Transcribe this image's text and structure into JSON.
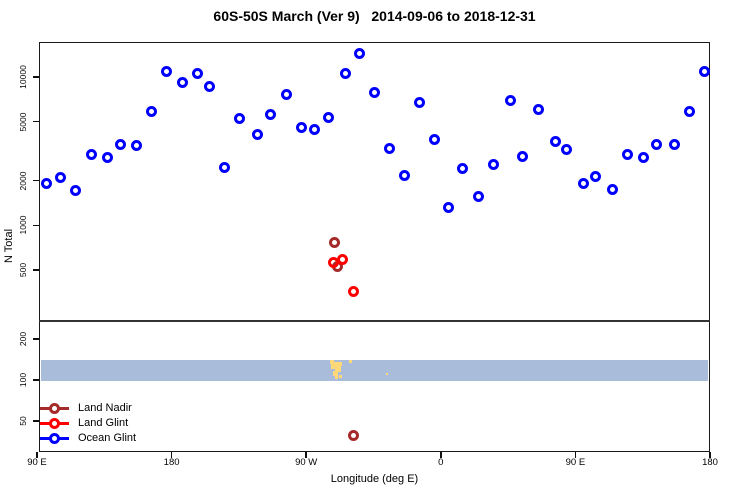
{
  "title": "60S-50S March (Ver 9)   2014-09-06 to 2018-12-31",
  "axes": {
    "y_label": "N Total",
    "x_label": "Longitude (deg E)",
    "x_ticks": [
      {
        "deg": 90,
        "label": "90 E"
      },
      {
        "deg": 180,
        "label": "180"
      },
      {
        "deg": 270,
        "label": "90 W"
      },
      {
        "deg": 360,
        "label": "0"
      },
      {
        "deg": 450,
        "label": "90 E"
      },
      {
        "deg": 540,
        "label": "180"
      }
    ],
    "y_ticks_upper": [
      "10000",
      "5000",
      "2000",
      "1000",
      "500"
    ],
    "y_ticks_lower": [
      "200",
      "100",
      "50"
    ]
  },
  "legend": [
    {
      "label": "Land Nadir",
      "color": "#A52A2A"
    },
    {
      "label": "Land Glint",
      "color": "#FF0000"
    },
    {
      "label": "Ocean Glint",
      "color": "#0000FF"
    }
  ],
  "chart_data": {
    "type": "scatter",
    "x_axis": {
      "units": "deg E continuous",
      "range": [
        90,
        540
      ]
    },
    "y_axis": {
      "scale": "log10 split panel",
      "upper_panel_range": [
        250,
        17000
      ],
      "lower_panel_range": [
        30,
        250
      ]
    },
    "band": {
      "label": "latitude-band highlight",
      "n_range": [
        100,
        140
      ],
      "color": "#A9BCDA"
    },
    "series": [
      {
        "name": "Land Nadir",
        "color": "#A52A2A",
        "points": [
          {
            "lon": 289.0,
            "n": 760
          },
          {
            "lon": 291.0,
            "n": 530
          },
          {
            "lon": 301.5,
            "n": 39
          }
        ]
      },
      {
        "name": "Land Glint",
        "color": "#FF0000",
        "points": [
          {
            "lon": 288.0,
            "n": 560
          },
          {
            "lon": 294.0,
            "n": 590
          },
          {
            "lon": 301.5,
            "n": 360
          }
        ]
      },
      {
        "name": "Ocean Glint",
        "color": "#0000FF",
        "points": [
          {
            "lon": 96.5,
            "n": 1900
          },
          {
            "lon": 105.5,
            "n": 2100
          },
          {
            "lon": 115.5,
            "n": 1710
          },
          {
            "lon": 126.5,
            "n": 2980
          },
          {
            "lon": 137.0,
            "n": 2870
          },
          {
            "lon": 146.0,
            "n": 3480
          },
          {
            "lon": 156.5,
            "n": 3430
          },
          {
            "lon": 166.5,
            "n": 5830
          },
          {
            "lon": 176.5,
            "n": 10900
          },
          {
            "lon": 187.0,
            "n": 9160
          },
          {
            "lon": 197.0,
            "n": 10600
          },
          {
            "lon": 205.5,
            "n": 8610
          },
          {
            "lon": 215.5,
            "n": 2450
          },
          {
            "lon": 225.5,
            "n": 5270
          },
          {
            "lon": 237.5,
            "n": 4110
          },
          {
            "lon": 246.0,
            "n": 5550
          },
          {
            "lon": 256.5,
            "n": 7680
          },
          {
            "lon": 267.0,
            "n": 4580
          },
          {
            "lon": 275.5,
            "n": 4460
          },
          {
            "lon": 285.0,
            "n": 5320
          },
          {
            "lon": 296.5,
            "n": 10600
          },
          {
            "lon": 305.5,
            "n": 14300
          },
          {
            "lon": 315.5,
            "n": 7840
          },
          {
            "lon": 325.5,
            "n": 3270
          },
          {
            "lon": 336.0,
            "n": 2150
          },
          {
            "lon": 345.5,
            "n": 6750
          },
          {
            "lon": 355.5,
            "n": 3800
          },
          {
            "lon": 365.0,
            "n": 1310
          },
          {
            "lon": 374.5,
            "n": 2410
          },
          {
            "lon": 385.5,
            "n": 1570
          },
          {
            "lon": 395.5,
            "n": 2570
          },
          {
            "lon": 406.5,
            "n": 6940
          },
          {
            "lon": 414.5,
            "n": 2900
          },
          {
            "lon": 425.5,
            "n": 6080
          },
          {
            "lon": 437.0,
            "n": 3670
          },
          {
            "lon": 444.0,
            "n": 3250
          },
          {
            "lon": 455.5,
            "n": 1910
          },
          {
            "lon": 463.5,
            "n": 2140
          },
          {
            "lon": 474.5,
            "n": 1730
          },
          {
            "lon": 485.0,
            "n": 2980
          },
          {
            "lon": 495.5,
            "n": 2860
          },
          {
            "lon": 504.5,
            "n": 3480
          },
          {
            "lon": 516.0,
            "n": 3490
          },
          {
            "lon": 526.0,
            "n": 5830
          },
          {
            "lon": 536.0,
            "n": 10970
          }
        ]
      }
    ],
    "land_marks": {
      "color": "#FFD87A",
      "points": [
        {
          "lon": 287.5,
          "n": 135,
          "size": 4
        },
        {
          "lon": 289.0,
          "n": 127,
          "size": 7
        },
        {
          "lon": 291.0,
          "n": 121,
          "size": 6
        },
        {
          "lon": 289.5,
          "n": 111,
          "size": 5
        },
        {
          "lon": 290.5,
          "n": 104,
          "size": 3
        },
        {
          "lon": 292.5,
          "n": 131,
          "size": 4
        },
        {
          "lon": 293.0,
          "n": 106,
          "size": 3
        },
        {
          "lon": 299.5,
          "n": 136,
          "size": 3
        },
        {
          "lon": 324.0,
          "n": 110,
          "size": 2
        }
      ]
    }
  }
}
